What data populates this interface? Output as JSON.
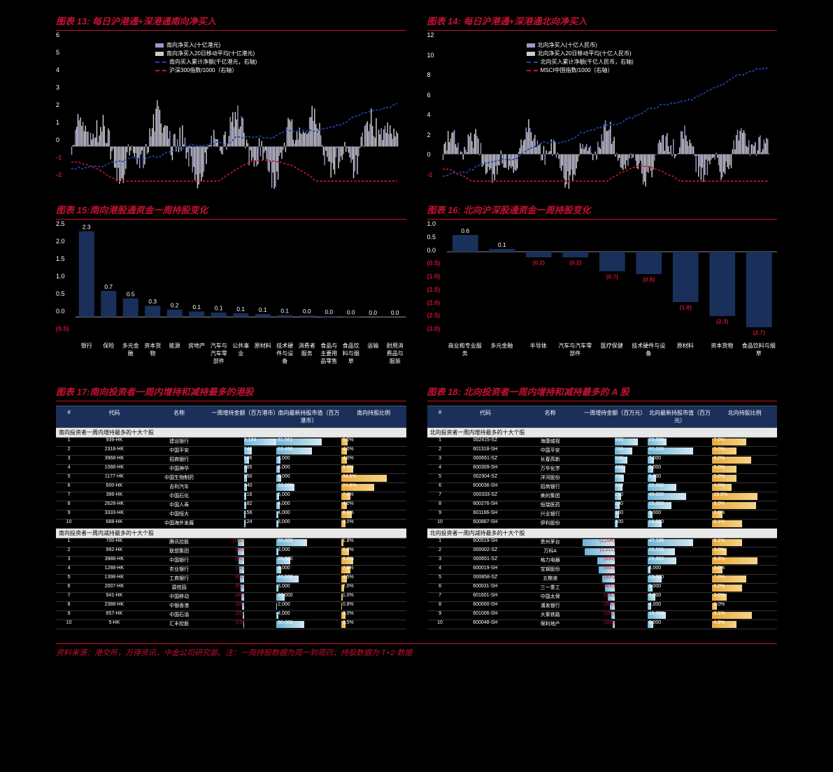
{
  "charts": {
    "c13": {
      "title": "图表 13: 每日沪港通+深港通南向净买入",
      "legend": [
        {
          "label": "南向净买入(十亿港元)",
          "color": "#9999cc",
          "type": "bar"
        },
        {
          "label": "南向净买入20日移动平均(十亿港元)",
          "color": "#cccccc",
          "type": "bar"
        },
        {
          "label": "南向买入累计净额(千亿港元，右轴)",
          "color": "#2244aa",
          "type": "line"
        },
        {
          "label": "沪深300指数/1000（右轴）",
          "color": "#c41230",
          "type": "line"
        }
      ],
      "y_ticks": [
        6,
        5,
        4,
        3,
        2,
        1,
        0,
        -1,
        -2
      ],
      "y_ticks_right": [
        10,
        8,
        6,
        4,
        2,
        0,
        -2
      ],
      "x_labels": [
        "2016-12",
        "2017-04",
        "2017-08",
        "2017-12",
        "2018-04",
        "2018-08",
        "2018-12"
      ]
    },
    "c14": {
      "title": "图表 14: 每日沪港通+深港通北向净买入",
      "legend": [
        {
          "label": "北向净买入(十亿人民币)",
          "color": "#9999cc",
          "type": "bar"
        },
        {
          "label": "北向净买入20日移动平均(十亿人民币)",
          "color": "#cccccc",
          "type": "bar"
        },
        {
          "label": "北向买入累计净额(千亿人民币，右轴)",
          "color": "#2244aa",
          "type": "line"
        },
        {
          "label": "MSCI中国指数/1000（右轴）",
          "color": "#c41230",
          "type": "line"
        }
      ],
      "y_ticks": [
        12,
        10,
        8,
        6,
        4,
        2,
        0,
        -2
      ],
      "y_ticks_right": [
        8,
        6,
        4,
        2,
        0,
        -2
      ],
      "x_labels": [
        "2016-12",
        "2017-04",
        "2017-08",
        "2017-12",
        "2018-04",
        "2018-08",
        "2018-12"
      ]
    },
    "c15": {
      "title": "图表 15:南向港股通资金一周持股变化",
      "y_ticks": [
        2.5,
        2.0,
        1.5,
        1.0,
        0.5,
        0.0,
        -0.5
      ],
      "y_label": "（十亿港币）",
      "bars": [
        {
          "label": "银行",
          "value": 2.3
        },
        {
          "label": "保险",
          "value": 0.7
        },
        {
          "label": "多元金融",
          "value": 0.5
        },
        {
          "label": "资本货物",
          "value": 0.3
        },
        {
          "label": "能源",
          "value": 0.2
        },
        {
          "label": "房地产",
          "value": 0.15
        },
        {
          "label": "汽车与汽车零部件",
          "value": 0.12
        },
        {
          "label": "公共事业",
          "value": 0.1
        },
        {
          "label": "原材料",
          "value": 0.08
        },
        {
          "label": "技术硬件与设备",
          "value": 0.05
        },
        {
          "label": "消费者服务",
          "value": 0.04
        },
        {
          "label": "食品与主要用品零售",
          "value": 0.02
        },
        {
          "label": "食品饮料与烟草",
          "value": 0.01
        },
        {
          "label": "运输",
          "value": 0.0
        },
        {
          "label": "耐用消费品与服装",
          "value": -0.0
        }
      ]
    },
    "c16": {
      "title": "图表 16: 北向沪深股通资金一周持股变化",
      "y_ticks": [
        1.0,
        0.5,
        0.0,
        -0.5,
        -1.0,
        -1.5,
        -2.0,
        -2.5,
        -3.0
      ],
      "y_label": "（十亿人民币）",
      "bars": [
        {
          "label": "商业和专业服务",
          "value": 0.6
        },
        {
          "label": "多元金融",
          "value": 0.1
        },
        {
          "label": "半导体",
          "value": -0.2
        },
        {
          "label": "汽车与汽车零部件",
          "value": -0.2
        },
        {
          "label": "医疗保健",
          "value": -0.7
        },
        {
          "label": "技术硬件与设备",
          "value": -0.8
        },
        {
          "label": "原材料",
          "value": -1.8
        },
        {
          "label": "资本货物",
          "value": -2.3
        },
        {
          "label": "食品饮料与烟草",
          "value": -2.7
        }
      ]
    },
    "c17": {
      "title": "图表 17:南向投资者一周内增持和减持最多的港股",
      "columns": [
        "#",
        "代码",
        "名称",
        "一周增持金额（百万港币）",
        "南向最新持股市值（百万港币）",
        "南向持股比例"
      ],
      "section1": "南向投资者一周内增持最多的十大个股",
      "section2": "南向投资者一周内减持最多的十大个股",
      "rows_inc": [
        {
          "idx": 1,
          "code": "939-HK",
          "name": "建设银行",
          "amt": 3124,
          "amt_w": 100,
          "mv": 81561,
          "mv_w": 100,
          "ratio": "5.0%",
          "ratio_w": 14
        },
        {
          "idx": 2,
          "code": "2318-HK",
          "name": "中国平安",
          "amt": 746,
          "amt_w": 24,
          "mv": 63496,
          "mv_w": 78,
          "ratio": "4.0%",
          "ratio_w": 12
        },
        {
          "idx": 3,
          "code": "3968-HK",
          "name": "招商银行",
          "amt": 506,
          "amt_w": 16,
          "mv": 7000,
          "mv_w": 9,
          "ratio": "4.0%",
          "ratio_w": 12
        },
        {
          "idx": 4,
          "code": "1088-HK",
          "name": "中国神华",
          "amt": 285,
          "amt_w": 9,
          "mv": 6000,
          "mv_w": 7,
          "ratio": "9.0%",
          "ratio_w": 26
        },
        {
          "idx": 5,
          "code": "1177-HK",
          "name": "中国生物制药",
          "amt": 250,
          "amt_w": 8,
          "mv": 8000,
          "mv_w": 10,
          "ratio": "34.5%",
          "ratio_w": 100
        },
        {
          "idx": 6,
          "code": "600-HK",
          "name": "吉利汽车",
          "amt": 240,
          "amt_w": 8,
          "mv": 33000,
          "mv_w": 40,
          "ratio": "24.8%",
          "ratio_w": 72
        },
        {
          "idx": 7,
          "code": "386-HK",
          "name": "中国石化",
          "amt": 216,
          "amt_w": 7,
          "mv": 5000,
          "mv_w": 6,
          "ratio": "7.0%",
          "ratio_w": 20
        },
        {
          "idx": 8,
          "code": "2628-HK",
          "name": "中国人寿",
          "amt": 182,
          "amt_w": 6,
          "mv": 6000,
          "mv_w": 7,
          "ratio": "4.0%",
          "ratio_w": 12
        },
        {
          "idx": 9,
          "code": "3333-HK",
          "name": "中国恒大",
          "amt": 156,
          "amt_w": 5,
          "mv": 4000,
          "mv_w": 5,
          "ratio": "8.0%",
          "ratio_w": 23
        },
        {
          "idx": 10,
          "code": "688-HK",
          "name": "中国海外发展",
          "amt": 124,
          "amt_w": 4,
          "mv": 3000,
          "mv_w": 4,
          "ratio": "3.0%",
          "ratio_w": 9
        }
      ],
      "rows_dec": [
        {
          "idx": 1,
          "code": "700-HK",
          "name": "腾讯控股",
          "amt": -100,
          "amt_w": 20,
          "mv": 55000,
          "mv_w": 67,
          "ratio": "1.8%",
          "ratio_w": 5
        },
        {
          "idx": 2,
          "code": "992-HK",
          "name": "联想集团",
          "amt": -90,
          "amt_w": 18,
          "mv": 3000,
          "mv_w": 4,
          "ratio": "6.0%",
          "ratio_w": 17
        },
        {
          "idx": 3,
          "code": "3988-HK",
          "name": "中国银行",
          "amt": -80,
          "amt_w": 16,
          "mv": 25000,
          "mv_w": 31,
          "ratio": "9.0%",
          "ratio_w": 26
        },
        {
          "idx": 4,
          "code": "1288-HK",
          "name": "农业银行",
          "amt": -70,
          "amt_w": 14,
          "mv": 8000,
          "mv_w": 10,
          "ratio": "7.0%",
          "ratio_w": 20
        },
        {
          "idx": 5,
          "code": "1398-HK",
          "name": "工商银行",
          "amt": -60,
          "amt_w": 12,
          "mv": 40000,
          "mv_w": 49,
          "ratio": "4.5%",
          "ratio_w": 13
        },
        {
          "idx": 6,
          "code": "2007-HK",
          "name": "碧桂园",
          "amt": -50,
          "amt_w": 10,
          "mv": 3000,
          "mv_w": 4,
          "ratio": "2.0%",
          "ratio_w": 6
        },
        {
          "idx": 7,
          "code": "941-HK",
          "name": "中国移动",
          "amt": -40,
          "amt_w": 8,
          "mv": 15000,
          "mv_w": 18,
          "ratio": "1.0%",
          "ratio_w": 3
        },
        {
          "idx": 8,
          "code": "2388-HK",
          "name": "中银香港",
          "amt": -30,
          "amt_w": 6,
          "mv": 2000,
          "mv_w": 2,
          "ratio": "0.8%",
          "ratio_w": 2
        },
        {
          "idx": 9,
          "code": "857-HK",
          "name": "中国石油",
          "amt": -20,
          "amt_w": 4,
          "mv": 4000,
          "mv_w": 5,
          "ratio": "3.0%",
          "ratio_w": 9
        },
        {
          "idx": 10,
          "code": "5-HK",
          "name": "汇丰控股",
          "amt": -10,
          "amt_w": 2,
          "mv": 50000,
          "mv_w": 61,
          "ratio": "3.5%",
          "ratio_w": 10
        }
      ]
    },
    "c18": {
      "title": "图表 18: 北向投资者一周内增持和减持最多的 A 股",
      "columns": [
        "#",
        "代码",
        "名称",
        "一周增持金额（百万元）",
        "北向最新持股市值（百万元）",
        "北向持股比例"
      ],
      "section1": "北向投资者一周内增持最多的十大个股",
      "section2": "北向投资者一周内减持最多的十大个股",
      "rows_inc": [
        {
          "idx": 1,
          "code": "002415-SZ",
          "name": "海康威视",
          "amt": 900,
          "amt_w": 70,
          "mv": 20000,
          "mv_w": 42,
          "ratio": "7.0%",
          "ratio_w": 75
        },
        {
          "idx": 2,
          "code": "601318-SH",
          "name": "中国平安",
          "amt": 700,
          "amt_w": 54,
          "mv": 60000,
          "mv_w": 100,
          "ratio": "5.0%",
          "ratio_w": 54
        },
        {
          "idx": 3,
          "code": "000661-SZ",
          "name": "长春高新",
          "amt": 500,
          "amt_w": 39,
          "mv": 7000,
          "mv_w": 15,
          "ratio": "8.0%",
          "ratio_w": 86
        },
        {
          "idx": 4,
          "code": "600309-SH",
          "name": "万华化学",
          "amt": 400,
          "amt_w": 31,
          "mv": 6000,
          "mv_w": 13,
          "ratio": "5.0%",
          "ratio_w": 54
        },
        {
          "idx": 5,
          "code": "002304-SZ",
          "name": "洋河股份",
          "amt": 350,
          "amt_w": 27,
          "mv": 9000,
          "mv_w": 19,
          "ratio": "5.0%",
          "ratio_w": 54
        },
        {
          "idx": 6,
          "code": "600036-SH",
          "name": "招商银行",
          "amt": 300,
          "amt_w": 23,
          "mv": 30000,
          "mv_w": 64,
          "ratio": "4.0%",
          "ratio_w": 43
        },
        {
          "idx": 7,
          "code": "000333-SZ",
          "name": "美的集团",
          "amt": 250,
          "amt_w": 19,
          "mv": 40000,
          "mv_w": 85,
          "ratio": "15.0%",
          "ratio_w": 100
        },
        {
          "idx": 8,
          "code": "600276-SH",
          "name": "恒瑞医药",
          "amt": 200,
          "amt_w": 15,
          "mv": 25000,
          "mv_w": 53,
          "ratio": "9.0%",
          "ratio_w": 97
        },
        {
          "idx": 9,
          "code": "601166-SH",
          "name": "兴业银行",
          "amt": 150,
          "amt_w": 12,
          "mv": 5000,
          "mv_w": 11,
          "ratio": "2.0%",
          "ratio_w": 22
        },
        {
          "idx": 10,
          "code": "600887-SH",
          "name": "伊利股份",
          "amt": 100,
          "amt_w": 8,
          "mv": 15000,
          "mv_w": 32,
          "ratio": "6.1%",
          "ratio_w": 66
        }
      ],
      "rows_dec": [
        {
          "idx": 1,
          "code": "600519-SH",
          "name": "贵州茅台",
          "amt": -1294,
          "amt_w": 100,
          "mv": 47189,
          "mv_w": 100,
          "ratio": "6.1%",
          "ratio_w": 66
        },
        {
          "idx": 2,
          "code": "000002-SZ",
          "name": "万科A",
          "amt": -1211,
          "amt_w": 94,
          "mv": 28555,
          "mv_w": 60,
          "ratio": "3.0%",
          "ratio_w": 32
        },
        {
          "idx": 3,
          "code": "000651-SZ",
          "name": "格力电器",
          "amt": -699,
          "amt_w": 54,
          "mv": 29893,
          "mv_w": 63,
          "ratio": "9.3%",
          "ratio_w": 100
        },
        {
          "idx": 4,
          "code": "600019-SH",
          "name": "宝钢股份",
          "amt": -660,
          "amt_w": 51,
          "mv": 3000,
          "mv_w": 6,
          "ratio": "2.0%",
          "ratio_w": 22
        },
        {
          "idx": 5,
          "code": "000858-SZ",
          "name": "五粮液",
          "amt": -500,
          "amt_w": 39,
          "mv": 15000,
          "mv_w": 32,
          "ratio": "7.0%",
          "ratio_w": 75
        },
        {
          "idx": 6,
          "code": "600031-SH",
          "name": "三一重工",
          "amt": -400,
          "amt_w": 31,
          "mv": 5000,
          "mv_w": 11,
          "ratio": "6.0%",
          "ratio_w": 65
        },
        {
          "idx": 7,
          "code": "601601-SH",
          "name": "中国太保",
          "amt": -300,
          "amt_w": 23,
          "mv": 8000,
          "mv_w": 17,
          "ratio": "3.0%",
          "ratio_w": 32
        },
        {
          "idx": 8,
          "code": "600000-SH",
          "name": "浦发银行",
          "amt": -200,
          "amt_w": 15,
          "mv": 4000,
          "mv_w": 8,
          "ratio": "1.0%",
          "ratio_w": 11
        },
        {
          "idx": 9,
          "code": "601006-SH",
          "name": "大秦铁路",
          "amt": -150,
          "amt_w": 12,
          "mv": 19000,
          "mv_w": 40,
          "ratio": "8.1%",
          "ratio_w": 87
        },
        {
          "idx": 10,
          "code": "600048-SH",
          "name": "保利地产",
          "amt": -100,
          "amt_w": 8,
          "mv": 6000,
          "mv_w": 13,
          "ratio": "4.9%",
          "ratio_w": 53
        }
      ]
    }
  },
  "colors": {
    "bar_fill": "#1a2f5a",
    "accent": "#c41230",
    "blue_line": "#2244aa",
    "red_line": "#c41230"
  },
  "source": "资料来源：港交所，万得资讯，中金公司研究部。注：一周持股数据为周一到周四；持股数据为 T+2 数据"
}
